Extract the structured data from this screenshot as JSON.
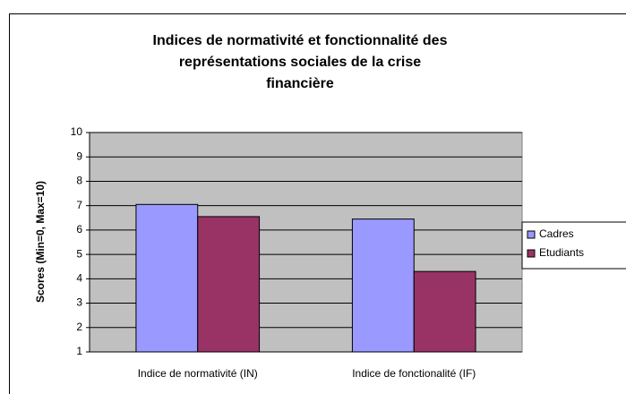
{
  "chart_data": {
    "type": "bar",
    "title": "Indices de normativité et fonctionnalité des représentations sociales de la crise financière",
    "ylabel": "Scores (Min=0, Max=10)",
    "categories": [
      "Indice de normativité (IN)",
      "Indice de fonctionalité (IF)"
    ],
    "series": [
      {
        "name": "Cadres",
        "color": "#9999ff",
        "values": [
          7.05,
          6.45
        ]
      },
      {
        "name": "Etudiants",
        "color": "#993366",
        "values": [
          6.55,
          4.3
        ]
      }
    ],
    "ylim": [
      1,
      10
    ],
    "yticks": [
      1,
      2,
      3,
      4,
      5,
      6,
      7,
      8,
      9,
      10
    ],
    "grid": true,
    "plot_background": "#c0c0c0",
    "legend": "right"
  }
}
